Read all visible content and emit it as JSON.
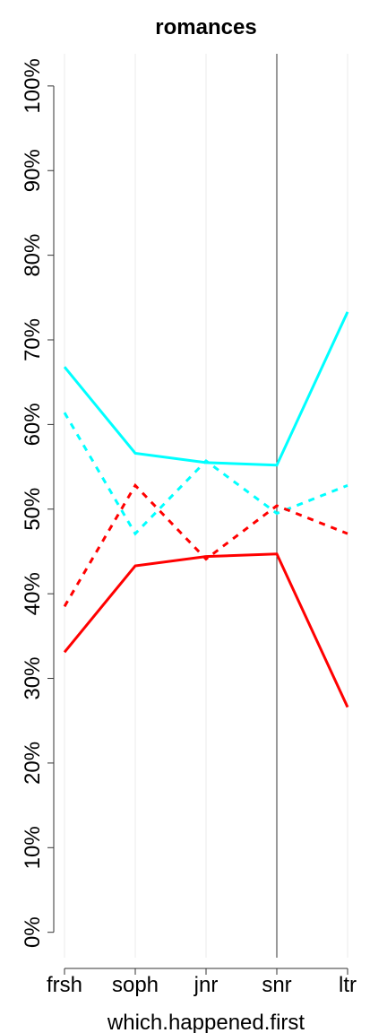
{
  "chart_data": {
    "type": "line",
    "title": "romances",
    "x_label": "which.happened.first",
    "categories": [
      "frsh",
      "soph",
      "jnr",
      "snr",
      "ltr"
    ],
    "series": [
      {
        "color": "#00ffff",
        "dashed": false,
        "values": [
          66.8,
          56.6,
          55.5,
          55.2,
          73.3
        ]
      },
      {
        "color": "#00ffff",
        "dashed": true,
        "values": [
          61.4,
          47.1,
          55.7,
          49.5,
          52.8
        ]
      },
      {
        "color": "#ff0000",
        "dashed": false,
        "values": [
          33.1,
          43.3,
          44.4,
          44.7,
          26.6
        ]
      },
      {
        "color": "#ff0000",
        "dashed": true,
        "values": [
          38.5,
          52.8,
          44.1,
          50.4,
          47.1
        ]
      }
    ],
    "ylim": [
      -3,
      103.8
    ],
    "yticks": [
      {
        "value": 0,
        "label": "0%"
      },
      {
        "value": 10,
        "label": "10%"
      },
      {
        "value": 20,
        "label": "20%"
      },
      {
        "value": 30,
        "label": "30%"
      },
      {
        "value": 40,
        "label": "40%"
      },
      {
        "value": 50,
        "label": "50%"
      },
      {
        "value": 60,
        "label": "60%"
      },
      {
        "value": 70,
        "label": "70%"
      },
      {
        "value": 80,
        "label": "80%"
      },
      {
        "value": 90,
        "label": "90%"
      },
      {
        "value": 100,
        "label": "100%"
      }
    ],
    "vline_category": "snr",
    "grid": true
  }
}
